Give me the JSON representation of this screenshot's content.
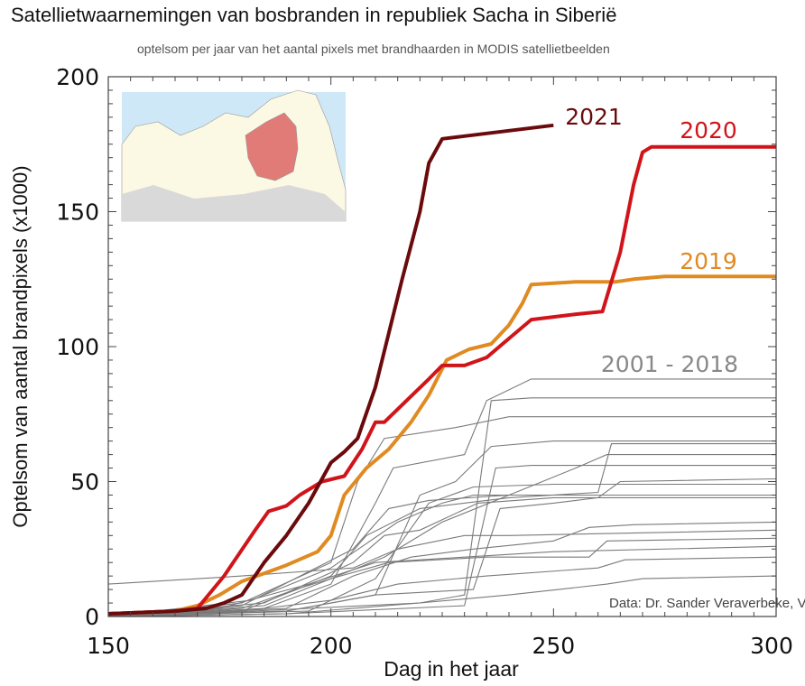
{
  "chart_data": {
    "type": "line",
    "title": "Satellietwaarnemingen van bosbranden in republiek Sacha in Siberië",
    "subtitle": "optelsom per jaar van het aantal pixels met brandhaarden in MODIS satellietbeelden",
    "xlabel": "Dag in het jaar",
    "ylabel": "Optelsom van aantal brandpixels (x1000)",
    "xlim": [
      150,
      300
    ],
    "ylim": [
      0,
      200
    ],
    "xticks": [
      150,
      200,
      250,
      300
    ],
    "yticks": [
      0,
      50,
      100,
      150,
      200
    ],
    "grid": false,
    "annotation": "Data: Dr. Sander Veraverbeke, VU Amsterdam",
    "inset": "map of Russia with Sakha Republic highlighted",
    "series": [
      {
        "name": "2001 - 2018",
        "color": "#7a7a7a",
        "group": true,
        "lines": [
          [
            [
              150,
              12
            ],
            [
              180,
              15
            ],
            [
              205,
              18
            ],
            [
              215,
              25
            ],
            [
              230,
              30
            ],
            [
              240,
              30
            ],
            [
              300,
              32
            ]
          ],
          [
            [
              150,
              0
            ],
            [
              180,
              5
            ],
            [
              200,
              20
            ],
            [
              206,
              50
            ],
            [
              212,
              66
            ],
            [
              228,
              70
            ],
            [
              240,
              74
            ],
            [
              300,
              74
            ]
          ],
          [
            [
              150,
              0
            ],
            [
              185,
              3
            ],
            [
              200,
              12
            ],
            [
              210,
              42
            ],
            [
              214,
              55
            ],
            [
              230,
              60
            ],
            [
              235,
              80
            ],
            [
              245,
              88
            ],
            [
              300,
              88
            ]
          ],
          [
            [
              150,
              0
            ],
            [
              190,
              2
            ],
            [
              210,
              8
            ],
            [
              220,
              45
            ],
            [
              228,
              50
            ],
            [
              236,
              63
            ],
            [
              250,
              65
            ],
            [
              300,
              65
            ]
          ],
          [
            [
              150,
              0
            ],
            [
              180,
              4
            ],
            [
              205,
              25
            ],
            [
              213,
              40
            ],
            [
              222,
              43
            ],
            [
              240,
              45
            ],
            [
              300,
              45
            ]
          ],
          [
            [
              150,
              0
            ],
            [
              180,
              2
            ],
            [
              200,
              15
            ],
            [
              208,
              30
            ],
            [
              220,
              40
            ],
            [
              240,
              44
            ],
            [
              260,
              46
            ],
            [
              263,
              64
            ],
            [
              300,
              64
            ]
          ],
          [
            [
              150,
              0
            ],
            [
              182,
              6
            ],
            [
              200,
              18
            ],
            [
              215,
              35
            ],
            [
              225,
              42
            ],
            [
              232,
              45
            ],
            [
              300,
              45
            ]
          ],
          [
            [
              150,
              0
            ],
            [
              195,
              2
            ],
            [
              210,
              14
            ],
            [
              222,
              42
            ],
            [
              232,
              48
            ],
            [
              250,
              49
            ],
            [
              300,
              49
            ]
          ],
          [
            [
              150,
              0
            ],
            [
              185,
              5
            ],
            [
              205,
              20
            ],
            [
              212,
              30
            ],
            [
              220,
              32
            ],
            [
              233,
              42
            ],
            [
              250,
              44
            ],
            [
              300,
              44
            ]
          ],
          [
            [
              150,
              0
            ],
            [
              190,
              3
            ],
            [
              205,
              15
            ],
            [
              218,
              22
            ],
            [
              232,
              25
            ],
            [
              250,
              28
            ],
            [
              258,
              33
            ],
            [
              268,
              34
            ],
            [
              300,
              35
            ]
          ],
          [
            [
              150,
              0
            ],
            [
              175,
              3
            ],
            [
              195,
              12
            ],
            [
              210,
              20
            ],
            [
              230,
              22
            ],
            [
              250,
              24
            ],
            [
              300,
              26
            ]
          ],
          [
            [
              150,
              0
            ],
            [
              190,
              2
            ],
            [
              210,
              8
            ],
            [
              232,
              10
            ],
            [
              238,
              40
            ],
            [
              250,
              42
            ],
            [
              260,
              44
            ],
            [
              265,
              50
            ],
            [
              300,
              51
            ]
          ],
          [
            [
              150,
              0
            ],
            [
              185,
              4
            ],
            [
              200,
              14
            ],
            [
              213,
              20
            ],
            [
              235,
              22
            ],
            [
              258,
              22
            ],
            [
              262,
              28
            ],
            [
              300,
              29
            ]
          ],
          [
            [
              150,
              0
            ],
            [
              180,
              3
            ],
            [
              192,
              10
            ],
            [
              200,
              14
            ],
            [
              212,
              22
            ],
            [
              225,
              35
            ],
            [
              240,
              45
            ],
            [
              255,
              55
            ],
            [
              262,
              60
            ],
            [
              300,
              60
            ]
          ],
          [
            [
              150,
              0
            ],
            [
              190,
              1
            ],
            [
              220,
              5
            ],
            [
              230,
              8
            ],
            [
              236,
              80
            ],
            [
              245,
              81
            ],
            [
              300,
              81
            ]
          ],
          [
            [
              150,
              0
            ],
            [
              170,
              1
            ],
            [
              195,
              3
            ],
            [
              220,
              5
            ],
            [
              240,
              8
            ],
            [
              262,
              12
            ],
            [
              270,
              14
            ],
            [
              300,
              15
            ]
          ],
          [
            [
              150,
              0
            ],
            [
              190,
              1
            ],
            [
              230,
              4
            ],
            [
              237,
              55
            ],
            [
              245,
              56
            ],
            [
              300,
              56
            ]
          ],
          [
            [
              150,
              0
            ],
            [
              180,
              2
            ],
            [
              200,
              6
            ],
            [
              215,
              12
            ],
            [
              235,
              15
            ],
            [
              260,
              18
            ],
            [
              266,
              21
            ],
            [
              300,
              22
            ]
          ]
        ]
      },
      {
        "name": "2019",
        "color": "#e08a22",
        "points": [
          [
            150,
            1
          ],
          [
            165,
            2
          ],
          [
            170,
            4
          ],
          [
            175,
            8
          ],
          [
            180,
            13
          ],
          [
            185,
            16
          ],
          [
            190,
            19
          ],
          [
            197,
            24
          ],
          [
            200,
            30
          ],
          [
            203,
            45
          ],
          [
            208,
            55
          ],
          [
            213,
            62
          ],
          [
            218,
            72
          ],
          [
            222,
            82
          ],
          [
            226,
            95
          ],
          [
            231,
            99
          ],
          [
            236,
            101
          ],
          [
            240,
            108
          ],
          [
            243,
            116
          ],
          [
            245,
            123
          ],
          [
            255,
            124
          ],
          [
            264,
            124
          ],
          [
            268,
            125
          ],
          [
            275,
            126
          ],
          [
            300,
            126
          ]
        ]
      },
      {
        "name": "2020",
        "color": "#d0151a",
        "points": [
          [
            150,
            1
          ],
          [
            165,
            2
          ],
          [
            170,
            3
          ],
          [
            176,
            15
          ],
          [
            183,
            32
          ],
          [
            186,
            39
          ],
          [
            190,
            41
          ],
          [
            193,
            45
          ],
          [
            198,
            50
          ],
          [
            203,
            52
          ],
          [
            207,
            62
          ],
          [
            210,
            72
          ],
          [
            212,
            72
          ],
          [
            217,
            80
          ],
          [
            222,
            88
          ],
          [
            225,
            93
          ],
          [
            230,
            93
          ],
          [
            235,
            96
          ],
          [
            240,
            103
          ],
          [
            245,
            110
          ],
          [
            255,
            112
          ],
          [
            261,
            113
          ],
          [
            265,
            135
          ],
          [
            268,
            160
          ],
          [
            270,
            172
          ],
          [
            272,
            174
          ],
          [
            300,
            174
          ]
        ]
      },
      {
        "name": "2021",
        "color": "#6b0a0c",
        "points": [
          [
            150,
            1
          ],
          [
            165,
            2
          ],
          [
            172,
            3
          ],
          [
            176,
            5
          ],
          [
            180,
            8
          ],
          [
            185,
            20
          ],
          [
            190,
            30
          ],
          [
            195,
            42
          ],
          [
            200,
            57
          ],
          [
            203,
            61
          ],
          [
            206,
            66
          ],
          [
            210,
            85
          ],
          [
            213,
            105
          ],
          [
            216,
            125
          ],
          [
            220,
            150
          ],
          [
            222,
            168
          ],
          [
            225,
            177
          ],
          [
            230,
            178
          ],
          [
            240,
            180
          ],
          [
            250,
            182
          ]
        ]
      }
    ]
  }
}
